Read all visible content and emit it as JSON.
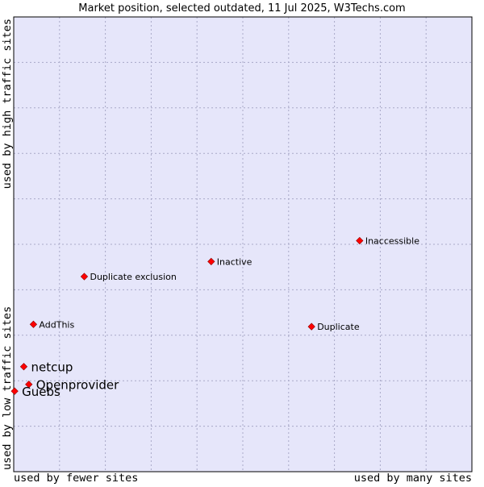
{
  "chart_data": {
    "type": "scatter",
    "title": "Market position, selected outdated, 11 Jul 2025, W3Techs.com",
    "xlabel_left": "used by fewer sites",
    "xlabel_right": "used by many sites",
    "ylabel_bottom": "used by low traffic sites",
    "ylabel_top": "used by high traffic sites",
    "xlim": [
      0,
      100
    ],
    "ylim": [
      0,
      100
    ],
    "grid": true,
    "colors": {
      "plot_background": "#e6e6fa",
      "grid": "#a9a9c8",
      "border": "#000000",
      "marker": "#ff0000",
      "marker_edge": "#8b0000"
    },
    "points": [
      {
        "label": "Inaccessible",
        "x": 75.5,
        "y": 50.8,
        "size": "small"
      },
      {
        "label": "Inactive",
        "x": 43.1,
        "y": 46.2,
        "size": "small"
      },
      {
        "label": "Duplicate exclusion",
        "x": 15.4,
        "y": 42.9,
        "size": "small"
      },
      {
        "label": "AddThis",
        "x": 4.3,
        "y": 32.4,
        "size": "small"
      },
      {
        "label": "Duplicate",
        "x": 65.0,
        "y": 31.9,
        "size": "small"
      },
      {
        "label": "netcup",
        "x": 2.2,
        "y": 23.1,
        "size": "large"
      },
      {
        "label": "Openprovider",
        "x": 3.3,
        "y": 19.2,
        "size": "large"
      },
      {
        "label": "Guebs",
        "x": 0.2,
        "y": 17.7,
        "size": "large"
      }
    ]
  }
}
